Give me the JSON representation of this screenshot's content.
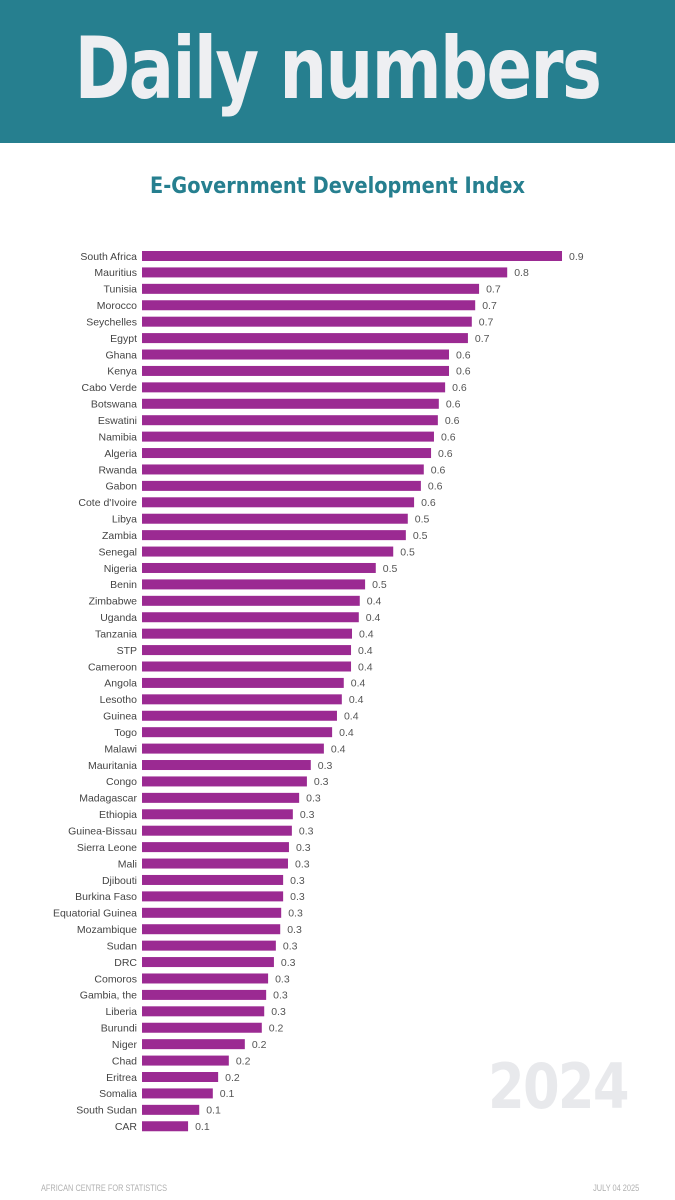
{
  "header": {
    "title": "Daily numbers",
    "banner_color": "#267f8f"
  },
  "chart_data": {
    "type": "bar",
    "orientation": "horizontal",
    "title": "E-Government Development Index",
    "xlabel": "",
    "ylabel": "",
    "xlim": [
      0,
      1
    ],
    "grid": false,
    "bar_color": "#9b2a92",
    "categories": [
      "South Africa",
      "Mauritius",
      "Tunisia",
      "Morocco",
      "Seychelles",
      "Egypt",
      "Ghana",
      "Kenya",
      "Cabo Verde",
      "Botswana",
      "Eswatini",
      "Namibia",
      "Algeria",
      "Rwanda",
      "Gabon",
      "Cote d'Ivoire",
      "Libya",
      "Zambia",
      "Senegal",
      "Nigeria",
      "Benin",
      "Zimbabwe",
      "Uganda",
      "Tanzania",
      "STP",
      "Cameroon",
      "Angola",
      "Lesotho",
      "Guinea",
      "Togo",
      "Malawi",
      "Mauritania",
      "Congo",
      "Madagascar",
      "Ethiopia",
      "Guinea-Bissau",
      "Sierra Leone",
      "Mali",
      "Djibouti",
      "Burkina Faso",
      "Equatorial Guinea",
      "Mozambique",
      "Sudan",
      "DRC",
      "Comoros",
      "Gambia, the",
      "Liberia",
      "Burundi",
      "Niger",
      "Chad",
      "Eritrea",
      "Somalia",
      "South Sudan",
      "CAR"
    ],
    "values": [
      0.866,
      0.753,
      0.695,
      0.687,
      0.68,
      0.672,
      0.633,
      0.633,
      0.625,
      0.612,
      0.61,
      0.602,
      0.596,
      0.581,
      0.575,
      0.561,
      0.548,
      0.544,
      0.518,
      0.482,
      0.46,
      0.449,
      0.447,
      0.433,
      0.431,
      0.431,
      0.416,
      0.412,
      0.402,
      0.392,
      0.375,
      0.348,
      0.34,
      0.324,
      0.311,
      0.309,
      0.303,
      0.301,
      0.291,
      0.291,
      0.287,
      0.285,
      0.276,
      0.272,
      0.26,
      0.256,
      0.252,
      0.247,
      0.212,
      0.179,
      0.157,
      0.146,
      0.118,
      0.095
    ],
    "data_labels": [
      "0.9",
      "0.8",
      "0.7",
      "0.7",
      "0.7",
      "0.7",
      "0.6",
      "0.6",
      "0.6",
      "0.6",
      "0.6",
      "0.6",
      "0.6",
      "0.6",
      "0.6",
      "0.6",
      "0.5",
      "0.5",
      "0.5",
      "0.5",
      "0.5",
      "0.4",
      "0.4",
      "0.4",
      "0.4",
      "0.4",
      "0.4",
      "0.4",
      "0.4",
      "0.4",
      "0.4",
      "0.3",
      "0.3",
      "0.3",
      "0.3",
      "0.3",
      "0.3",
      "0.3",
      "0.3",
      "0.3",
      "0.3",
      "0.3",
      "0.3",
      "0.3",
      "0.3",
      "0.3",
      "0.3",
      "0.2",
      "0.2",
      "0.2",
      "0.2",
      "0.1",
      "0.1",
      "0.1"
    ],
    "annotation": "2024"
  },
  "footer": {
    "source": "AFRICAN CENTRE FOR STATISTICS",
    "date": "JULY 04 2025"
  }
}
